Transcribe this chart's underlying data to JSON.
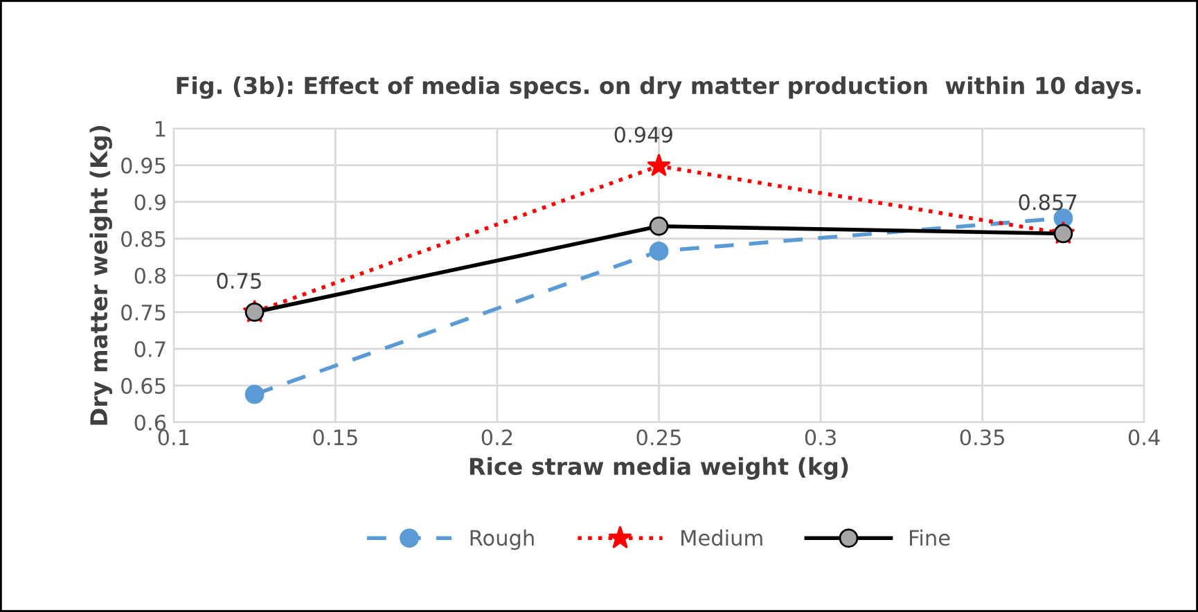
{
  "chart_data": {
    "type": "line",
    "title": "Fig. (3b): Effect of media specs. on dry matter production  within 10 days.",
    "xlabel": "Rice straw media weight (kg)",
    "ylabel": "Dry matter weight (Kg)",
    "x": [
      0.125,
      0.25,
      0.375
    ],
    "series": [
      {
        "name": "Rough",
        "color": "#5b9bd5",
        "values": [
          0.638,
          0.833,
          0.878
        ],
        "line_style": "dashed",
        "marker": "circle"
      },
      {
        "name": "Medium",
        "color": "#ff0000",
        "values": [
          0.75,
          0.949,
          0.857
        ],
        "line_style": "dotted",
        "marker": "star",
        "value_labels": [
          "0.75",
          "0.949",
          "0.857"
        ]
      },
      {
        "name": "Fine",
        "color": "#000000",
        "values": [
          0.75,
          0.867,
          0.857
        ],
        "line_style": "solid",
        "marker": "circle"
      }
    ],
    "xlim": [
      0.1,
      0.4
    ],
    "xticks": [
      {
        "value": 0.1,
        "label": "0.1"
      },
      {
        "value": 0.15,
        "label": "0.15"
      },
      {
        "value": 0.2,
        "label": "0.2"
      },
      {
        "value": 0.25,
        "label": "0.25"
      },
      {
        "value": 0.3,
        "label": "0.3"
      },
      {
        "value": 0.35,
        "label": "0.35"
      },
      {
        "value": 0.4,
        "label": "0.4"
      }
    ],
    "ylim": [
      0.6,
      1
    ],
    "yticks": [
      {
        "value": 0.6,
        "label": "0.6"
      },
      {
        "value": 0.65,
        "label": "0.65"
      },
      {
        "value": 0.7,
        "label": "0.7"
      },
      {
        "value": 0.75,
        "label": "0.75"
      },
      {
        "value": 0.8,
        "label": "0.8"
      },
      {
        "value": 0.85,
        "label": "0.85"
      },
      {
        "value": 0.9,
        "label": "0.9"
      },
      {
        "value": 0.95,
        "label": "0.95"
      },
      {
        "value": 1,
        "label": "1"
      }
    ],
    "grid": true,
    "legend": "bottom"
  }
}
